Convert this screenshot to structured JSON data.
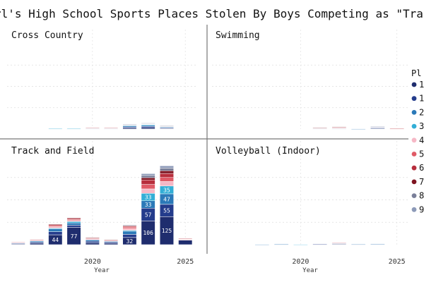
{
  "title": "rl's High School Sports Places Stolen By Boys Competing as \"Tra",
  "legend": {
    "title": "Pl",
    "items": [
      {
        "label": "1",
        "color": "#1f2d6e"
      },
      {
        "label": "1",
        "color": "#243c8c"
      },
      {
        "label": "2",
        "color": "#2b79b8"
      },
      {
        "label": "3",
        "color": "#33aed6"
      },
      {
        "label": "4",
        "color": "#f6b8c6"
      },
      {
        "label": "5",
        "color": "#e05a66"
      },
      {
        "label": "6",
        "color": "#b72e3c"
      },
      {
        "label": "7",
        "color": "#7e1420"
      },
      {
        "label": "8",
        "color": "#7a7f99"
      },
      {
        "label": "9",
        "color": "#8d9ab8"
      }
    ]
  },
  "chart_data": [
    {
      "type": "bar",
      "title": "Cross Country",
      "x": [
        2018,
        2019,
        2020,
        2021,
        2022,
        2023,
        2024
      ],
      "series": [
        {
          "values": [
            0,
            0,
            1,
            1,
            5,
            6,
            3
          ]
        },
        {
          "values": [
            0,
            0,
            1,
            1,
            5,
            6,
            3
          ]
        },
        {
          "values": [
            1,
            1,
            1,
            1,
            5,
            5,
            3
          ]
        },
        {
          "values": [
            1,
            1,
            1,
            1,
            4,
            5,
            3
          ]
        },
        {
          "values": [
            0,
            0,
            0,
            0,
            0,
            1,
            0
          ]
        },
        {
          "values": [
            0,
            0,
            1,
            1,
            1,
            1,
            1
          ]
        },
        {
          "values": [
            0,
            0,
            1,
            1,
            1,
            1,
            1
          ]
        },
        {
          "values": [
            0,
            0,
            0,
            0,
            1,
            1,
            1
          ]
        },
        {
          "values": [
            0,
            0,
            0,
            0,
            1,
            1,
            1
          ]
        },
        {
          "values": [
            0,
            0,
            0,
            0,
            1,
            1,
            0
          ]
        }
      ]
    },
    {
      "type": "bar",
      "title": "Swimming",
      "x": [
        2020,
        2021,
        2022,
        2023,
        2024,
        2025
      ],
      "series": [
        {
          "values": [
            0,
            1,
            1,
            0,
            3,
            0
          ]
        },
        {
          "values": [
            0,
            1,
            1,
            0,
            3,
            0
          ]
        },
        {
          "values": [
            0,
            1,
            1,
            1,
            2,
            0
          ]
        },
        {
          "values": [
            0,
            0,
            1,
            0,
            1,
            0
          ]
        },
        {
          "values": [
            0,
            0,
            1,
            0,
            1,
            0
          ]
        },
        {
          "values": [
            0,
            1,
            3,
            0,
            0,
            1
          ]
        },
        {
          "values": [
            0,
            1,
            2,
            0,
            1,
            1
          ]
        },
        {
          "values": [
            0,
            1,
            1,
            0,
            0,
            0
          ]
        },
        {
          "values": [
            0,
            0,
            0,
            0,
            0,
            0
          ]
        },
        {
          "values": [
            0,
            0,
            0,
            0,
            1,
            0
          ]
        }
      ]
    },
    {
      "type": "bar",
      "title": "Track and Field",
      "xlabel": "Year",
      "x": [
        2016,
        2017,
        2018,
        2019,
        2020,
        2021,
        2022,
        2023,
        2024,
        2025
      ],
      "x_ticks": [
        "2020",
        "2025"
      ],
      "series": [
        {
          "values": [
            3,
            6,
            44,
            77,
            8,
            6,
            32,
            106,
            125,
            20
          ],
          "labels": [
            "",
            "",
            "44",
            "77",
            "",
            "",
            "32",
            "106",
            "125",
            ""
          ]
        },
        {
          "values": [
            3,
            5,
            14,
            10,
            7,
            5,
            14,
            57,
            55,
            0
          ],
          "labels": [
            "",
            "",
            "",
            "",
            "",
            "",
            "",
            "57",
            "55",
            ""
          ]
        },
        {
          "values": [
            3,
            5,
            12,
            10,
            6,
            4,
            14,
            33,
            47,
            0
          ],
          "labels": [
            "",
            "",
            "",
            "",
            "",
            "",
            "",
            "33",
            "47",
            ""
          ]
        },
        {
          "values": [
            0,
            0,
            4,
            6,
            0,
            0,
            4,
            33,
            35,
            0
          ],
          "labels": [
            "",
            "",
            "",
            "",
            "",
            "",
            "",
            "33",
            "35",
            ""
          ]
        },
        {
          "values": [
            1,
            3,
            6,
            5,
            4,
            2,
            8,
            20,
            20,
            3
          ]
        },
        {
          "values": [
            1,
            2,
            5,
            4,
            3,
            3,
            6,
            20,
            18,
            2
          ]
        },
        {
          "values": [
            0,
            2,
            4,
            5,
            2,
            2,
            4,
            20,
            18,
            2
          ]
        },
        {
          "values": [
            0,
            0,
            3,
            3,
            2,
            1,
            3,
            10,
            12,
            0
          ]
        },
        {
          "values": [
            0,
            0,
            0,
            0,
            0,
            0,
            3,
            10,
            12,
            0
          ]
        },
        {
          "values": [
            0,
            0,
            0,
            0,
            0,
            0,
            0,
            8,
            10,
            0
          ]
        }
      ]
    },
    {
      "type": "bar",
      "title": "Volleyball (Indoor)",
      "xlabel": "Year",
      "x": [
        2018,
        2019,
        2020,
        2021,
        2022,
        2023,
        2024
      ],
      "x_ticks": [
        "2020",
        "2025"
      ],
      "series": [
        {
          "values": [
            0,
            0,
            0,
            1,
            3,
            1,
            2
          ]
        },
        {
          "values": [
            0,
            1,
            0,
            1,
            2,
            1,
            1
          ]
        },
        {
          "values": [
            1,
            1,
            0,
            0,
            2,
            1,
            1
          ]
        },
        {
          "values": [
            0,
            0,
            1,
            0,
            1,
            0,
            0
          ]
        },
        {
          "values": [
            0,
            0,
            0,
            0,
            0,
            0,
            0
          ]
        },
        {
          "values": [
            0,
            0,
            0,
            0,
            1,
            0,
            0
          ]
        },
        {
          "values": [
            0,
            0,
            0,
            0,
            0,
            0,
            0
          ]
        },
        {
          "values": [
            0,
            0,
            0,
            0,
            0,
            0,
            0
          ]
        },
        {
          "values": [
            0,
            0,
            0,
            0,
            0,
            0,
            0
          ]
        },
        {
          "values": [
            0,
            0,
            0,
            0,
            0,
            0,
            0
          ]
        }
      ]
    }
  ]
}
